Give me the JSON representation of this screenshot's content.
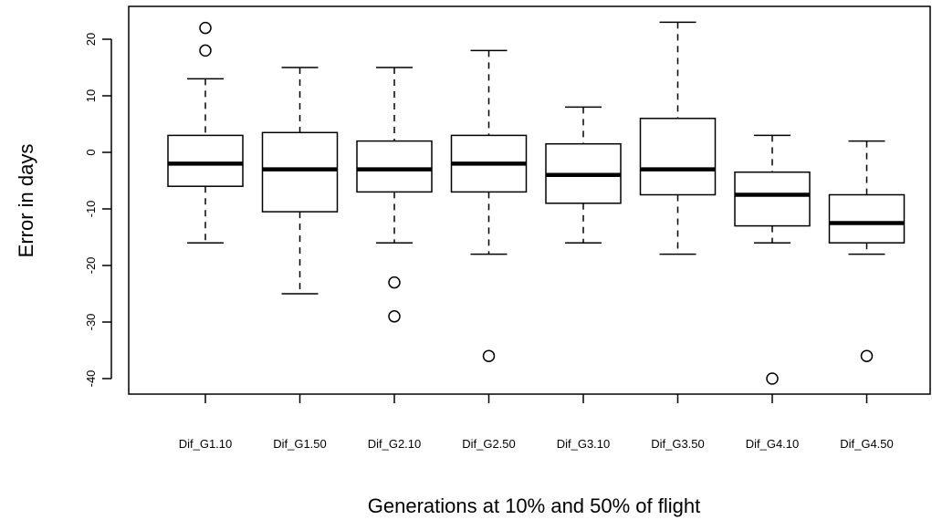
{
  "chart_data": {
    "type": "boxplot",
    "title": "",
    "xlabel": "Generations at 10% and 50% of flight",
    "ylabel": "Error in days",
    "ylim": [
      -42,
      25
    ],
    "yticks": [
      -40,
      -30,
      -20,
      -10,
      0,
      10,
      20
    ],
    "grid": false,
    "categories": [
      "Dif_G1.10",
      "Dif_G1.50",
      "Dif_G2.10",
      "Dif_G2.50",
      "Dif_G3.10",
      "Dif_G3.50",
      "Dif_G4.10",
      "Dif_G4.50"
    ],
    "boxes": [
      {
        "label": "Dif_G1.10",
        "whisker_low": -16,
        "q1": -6,
        "median": -2,
        "q3": 3,
        "whisker_high": 13,
        "outliers": [
          22,
          18
        ]
      },
      {
        "label": "Dif_G1.50",
        "whisker_low": -25,
        "q1": -10.5,
        "median": -3,
        "q3": 3.5,
        "whisker_high": 15,
        "outliers": []
      },
      {
        "label": "Dif_G2.10",
        "whisker_low": -16,
        "q1": -7,
        "median": -3,
        "q3": 2,
        "whisker_high": 15,
        "outliers": [
          -23,
          -29
        ]
      },
      {
        "label": "Dif_G2.50",
        "whisker_low": -18,
        "q1": -7,
        "median": -2,
        "q3": 3,
        "whisker_high": 18,
        "outliers": [
          -36
        ]
      },
      {
        "label": "Dif_G3.10",
        "whisker_low": -16,
        "q1": -9,
        "median": -4,
        "q3": 1.5,
        "whisker_high": 8,
        "outliers": []
      },
      {
        "label": "Dif_G3.50",
        "whisker_low": -18,
        "q1": -7.5,
        "median": -3,
        "q3": 6,
        "whisker_high": 23,
        "outliers": []
      },
      {
        "label": "Dif_G4.10",
        "whisker_low": -16,
        "q1": -13,
        "median": -7.5,
        "q3": -3.5,
        "whisker_high": 3,
        "outliers": [
          -40
        ]
      },
      {
        "label": "Dif_G4.50",
        "whisker_low": -18,
        "q1": -16,
        "median": -12.5,
        "q3": -7.5,
        "whisker_high": 2,
        "outliers": [
          -36
        ]
      }
    ]
  }
}
